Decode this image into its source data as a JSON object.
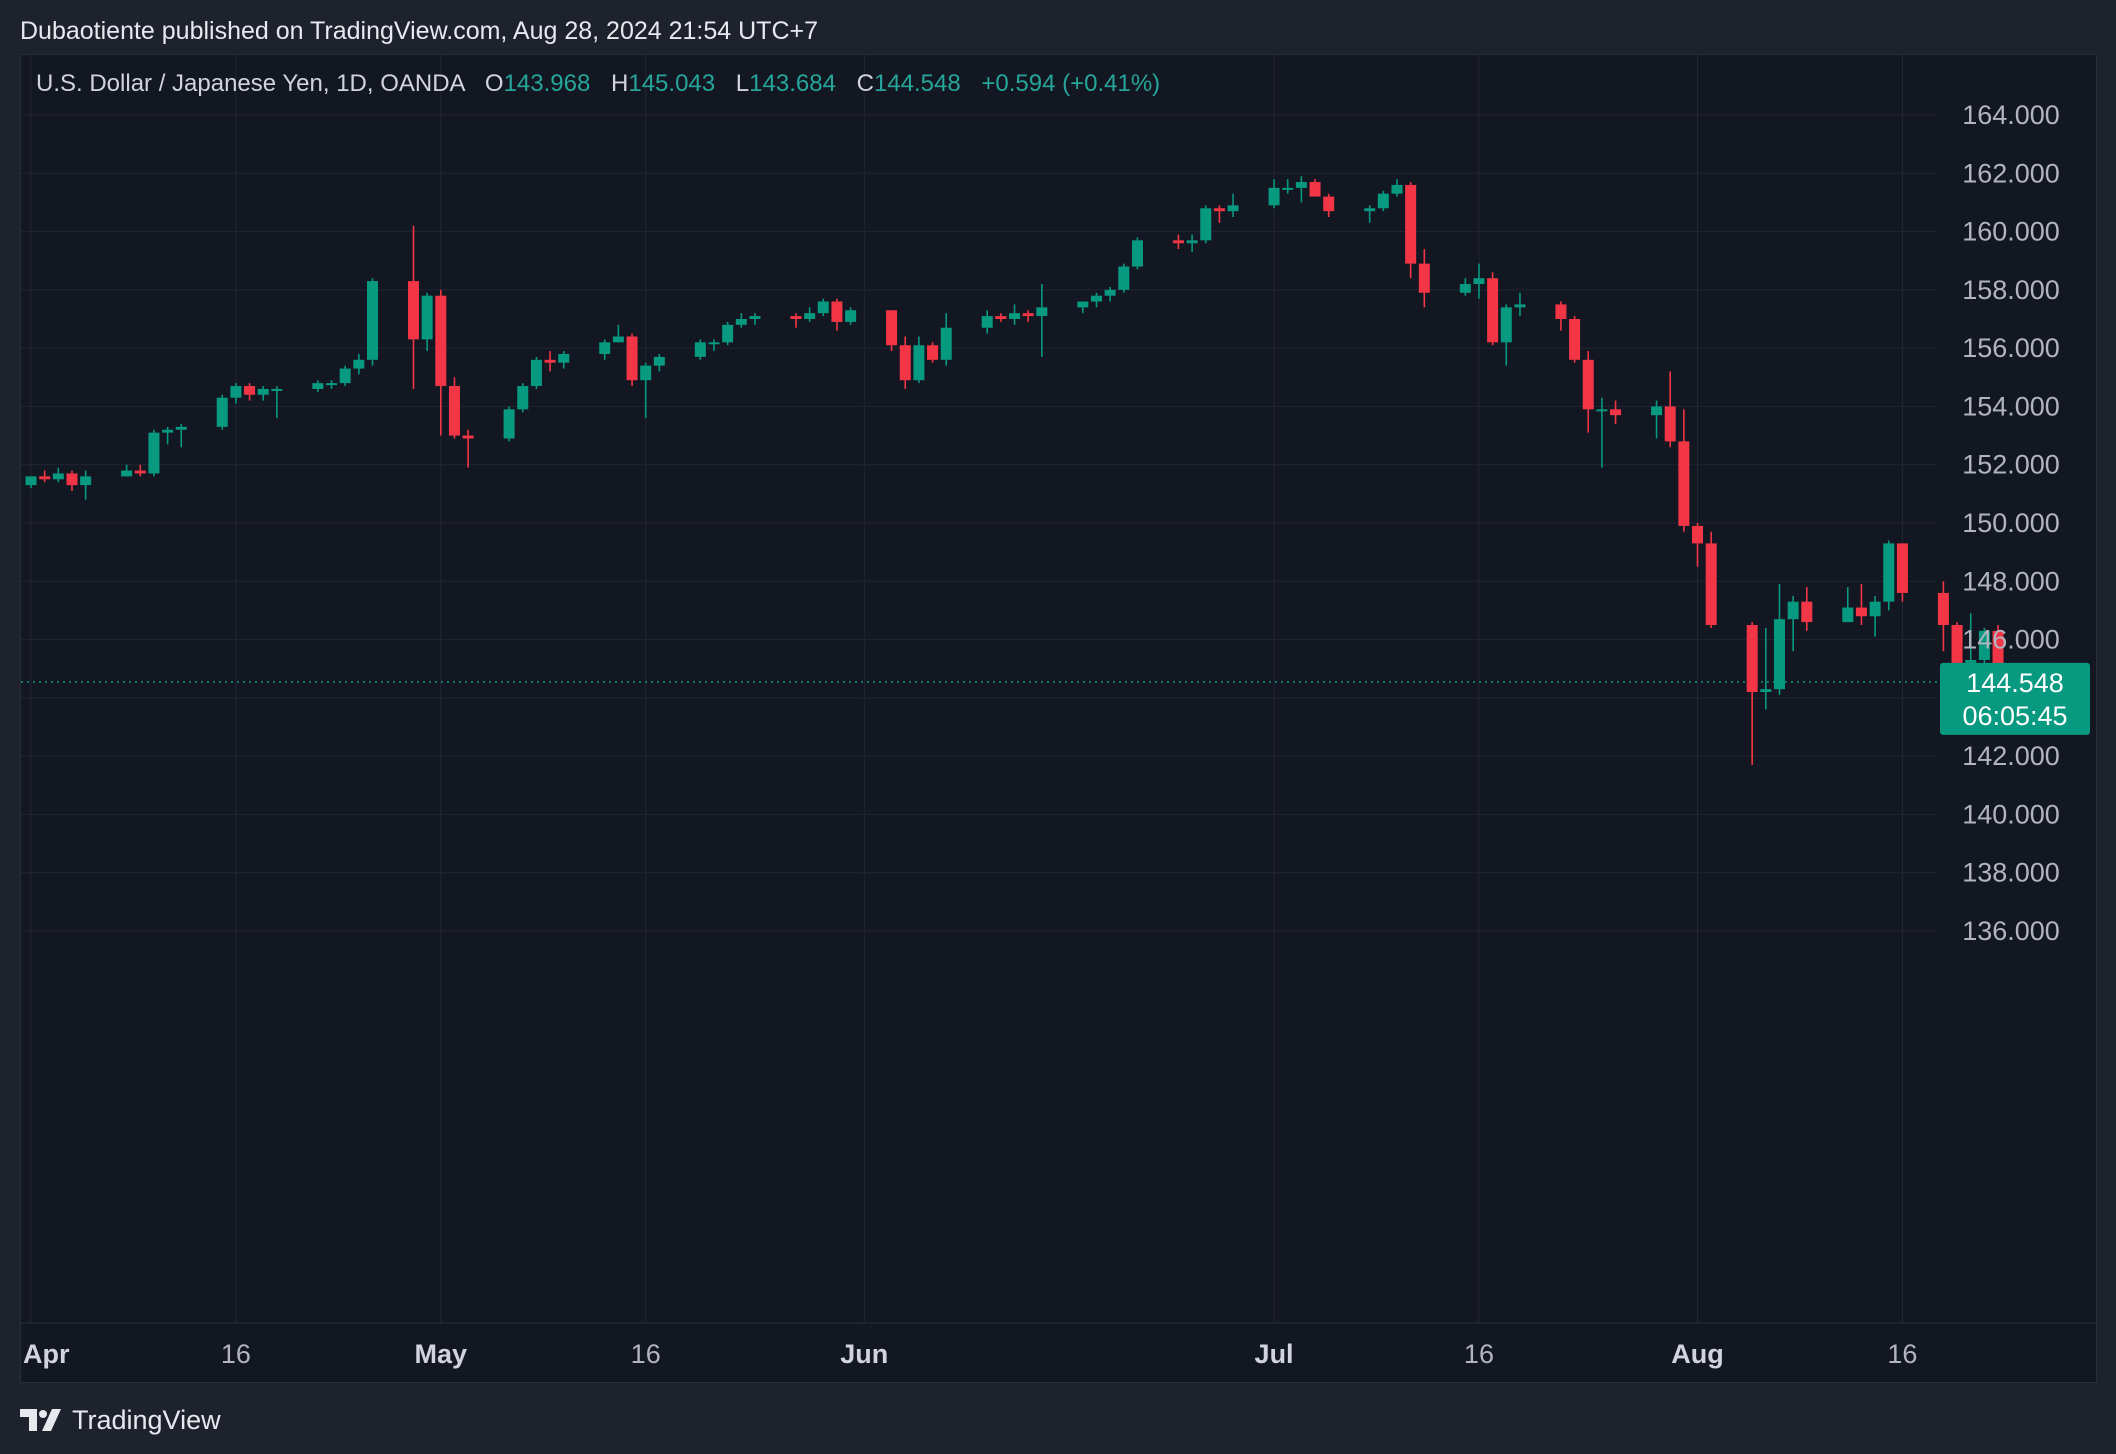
{
  "header": {
    "published_line": "Dubaotiente published on TradingView.com, Aug 28, 2024 21:54 UTC+7"
  },
  "legend": {
    "symbol": "U.S. Dollar / Japanese Yen, 1D, OANDA",
    "open_key": "O",
    "open_value": "143.968",
    "high_key": "H",
    "high_value": "145.043",
    "low_key": "L",
    "low_value": "143.684",
    "close_key": "C",
    "close_value": "144.548",
    "change": "+0.594 (+0.41%)"
  },
  "price_tag": {
    "price": "144.548",
    "countdown": "06:05:45"
  },
  "footer": {
    "brand": "TradingView"
  },
  "colors": {
    "up": "#089981",
    "down": "#f23645",
    "background": "#131722",
    "grid": "#232632",
    "price_tag": "#089981"
  },
  "chart_data": {
    "type": "candlestick",
    "title": "U.S. Dollar / Japanese Yen, 1D, OANDA",
    "xlabel": "",
    "ylabel": "",
    "y_axis_position": "right",
    "ylim": [
      134.5,
      165.5
    ],
    "y_ticks": [
      "136.000",
      "138.000",
      "140.000",
      "142.000",
      "144.000",
      "146.000",
      "148.000",
      "150.000",
      "152.000",
      "154.000",
      "156.000",
      "158.000",
      "160.000",
      "162.000",
      "164.000"
    ],
    "x_ticks": [
      {
        "label": "Apr",
        "date": "2024-04-01",
        "month": true
      },
      {
        "label": "16",
        "date": "2024-04-16",
        "month": false
      },
      {
        "label": "May",
        "date": "2024-05-01",
        "month": true
      },
      {
        "label": "16",
        "date": "2024-05-16",
        "month": false
      },
      {
        "label": "Jun",
        "date": "2024-06-01",
        "month": true
      },
      {
        "label": "Jul",
        "date": "2024-07-01",
        "month": true
      },
      {
        "label": "16",
        "date": "2024-07-16",
        "month": false
      },
      {
        "label": "Aug",
        "date": "2024-08-01",
        "month": true
      },
      {
        "label": "16",
        "date": "2024-08-16",
        "month": false
      }
    ],
    "x_range": [
      "2024-04-01",
      "2024-08-28"
    ],
    "last_price": 144.548,
    "grid": true,
    "candles": [
      {
        "date": "2024-04-01",
        "o": 151.3,
        "h": 151.6,
        "l": 151.2,
        "c": 151.6
      },
      {
        "date": "2024-04-02",
        "o": 151.6,
        "h": 151.8,
        "l": 151.4,
        "c": 151.5
      },
      {
        "date": "2024-04-03",
        "o": 151.5,
        "h": 151.9,
        "l": 151.4,
        "c": 151.7
      },
      {
        "date": "2024-04-04",
        "o": 151.7,
        "h": 151.8,
        "l": 151.1,
        "c": 151.3
      },
      {
        "date": "2024-04-05",
        "o": 151.3,
        "h": 151.8,
        "l": 150.8,
        "c": 151.6
      },
      {
        "date": "2024-04-08",
        "o": 151.6,
        "h": 152.0,
        "l": 151.6,
        "c": 151.8
      },
      {
        "date": "2024-04-09",
        "o": 151.8,
        "h": 152.0,
        "l": 151.6,
        "c": 151.7
      },
      {
        "date": "2024-04-10",
        "o": 151.7,
        "h": 153.2,
        "l": 151.6,
        "c": 153.1
      },
      {
        "date": "2024-04-11",
        "o": 153.1,
        "h": 153.3,
        "l": 152.7,
        "c": 153.2
      },
      {
        "date": "2024-04-12",
        "o": 153.2,
        "h": 153.4,
        "l": 152.6,
        "c": 153.3
      },
      {
        "date": "2024-04-15",
        "o": 153.3,
        "h": 154.4,
        "l": 153.2,
        "c": 154.3
      },
      {
        "date": "2024-04-16",
        "o": 154.3,
        "h": 154.8,
        "l": 154.1,
        "c": 154.7
      },
      {
        "date": "2024-04-17",
        "o": 154.7,
        "h": 154.8,
        "l": 154.2,
        "c": 154.4
      },
      {
        "date": "2024-04-18",
        "o": 154.4,
        "h": 154.7,
        "l": 154.2,
        "c": 154.6
      },
      {
        "date": "2024-04-19",
        "o": 154.6,
        "h": 154.7,
        "l": 153.6,
        "c": 154.6
      },
      {
        "date": "2024-04-22",
        "o": 154.6,
        "h": 154.9,
        "l": 154.5,
        "c": 154.8
      },
      {
        "date": "2024-04-23",
        "o": 154.8,
        "h": 154.9,
        "l": 154.6,
        "c": 154.8
      },
      {
        "date": "2024-04-24",
        "o": 154.8,
        "h": 155.4,
        "l": 154.7,
        "c": 155.3
      },
      {
        "date": "2024-04-25",
        "o": 155.3,
        "h": 155.8,
        "l": 155.1,
        "c": 155.6
      },
      {
        "date": "2024-04-26",
        "o": 155.6,
        "h": 158.4,
        "l": 155.4,
        "c": 158.3
      },
      {
        "date": "2024-04-29",
        "o": 158.3,
        "h": 160.2,
        "l": 154.6,
        "c": 156.3
      },
      {
        "date": "2024-04-30",
        "o": 156.3,
        "h": 157.9,
        "l": 155.9,
        "c": 157.8
      },
      {
        "date": "2024-05-01",
        "o": 157.8,
        "h": 158.0,
        "l": 153.0,
        "c": 154.7
      },
      {
        "date": "2024-05-02",
        "o": 154.7,
        "h": 155.0,
        "l": 152.9,
        "c": 153.0
      },
      {
        "date": "2024-05-03",
        "o": 153.0,
        "h": 153.2,
        "l": 151.9,
        "c": 152.9
      },
      {
        "date": "2024-05-06",
        "o": 152.9,
        "h": 154.0,
        "l": 152.8,
        "c": 153.9
      },
      {
        "date": "2024-05-07",
        "o": 153.9,
        "h": 154.8,
        "l": 153.8,
        "c": 154.7
      },
      {
        "date": "2024-05-08",
        "o": 154.7,
        "h": 155.7,
        "l": 154.6,
        "c": 155.6
      },
      {
        "date": "2024-05-09",
        "o": 155.6,
        "h": 155.9,
        "l": 155.2,
        "c": 155.5
      },
      {
        "date": "2024-05-10",
        "o": 155.5,
        "h": 155.9,
        "l": 155.3,
        "c": 155.8
      },
      {
        "date": "2024-05-13",
        "o": 155.8,
        "h": 156.3,
        "l": 155.6,
        "c": 156.2
      },
      {
        "date": "2024-05-14",
        "o": 156.2,
        "h": 156.8,
        "l": 156.2,
        "c": 156.4
      },
      {
        "date": "2024-05-15",
        "o": 156.4,
        "h": 156.5,
        "l": 154.7,
        "c": 154.9
      },
      {
        "date": "2024-05-16",
        "o": 154.9,
        "h": 155.5,
        "l": 153.6,
        "c": 155.4
      },
      {
        "date": "2024-05-17",
        "o": 155.4,
        "h": 155.8,
        "l": 155.2,
        "c": 155.7
      },
      {
        "date": "2024-05-20",
        "o": 155.7,
        "h": 156.3,
        "l": 155.6,
        "c": 156.2
      },
      {
        "date": "2024-05-21",
        "o": 156.2,
        "h": 156.3,
        "l": 155.9,
        "c": 156.2
      },
      {
        "date": "2024-05-22",
        "o": 156.2,
        "h": 156.9,
        "l": 156.1,
        "c": 156.8
      },
      {
        "date": "2024-05-23",
        "o": 156.8,
        "h": 157.2,
        "l": 156.7,
        "c": 157.0
      },
      {
        "date": "2024-05-24",
        "o": 157.0,
        "h": 157.2,
        "l": 156.8,
        "c": 157.1
      },
      {
        "date": "2024-05-27",
        "o": 157.1,
        "h": 157.2,
        "l": 156.7,
        "c": 157.0
      },
      {
        "date": "2024-05-28",
        "o": 157.0,
        "h": 157.4,
        "l": 156.9,
        "c": 157.2
      },
      {
        "date": "2024-05-29",
        "o": 157.2,
        "h": 157.7,
        "l": 157.1,
        "c": 157.6
      },
      {
        "date": "2024-05-30",
        "o": 157.6,
        "h": 157.7,
        "l": 156.6,
        "c": 156.9
      },
      {
        "date": "2024-05-31",
        "o": 156.9,
        "h": 157.4,
        "l": 156.8,
        "c": 157.3
      },
      {
        "date": "2024-06-03",
        "o": 157.3,
        "h": 157.3,
        "l": 155.9,
        "c": 156.1
      },
      {
        "date": "2024-06-04",
        "o": 156.1,
        "h": 156.4,
        "l": 154.6,
        "c": 154.9
      },
      {
        "date": "2024-06-05",
        "o": 154.9,
        "h": 156.4,
        "l": 154.8,
        "c": 156.1
      },
      {
        "date": "2024-06-06",
        "o": 156.1,
        "h": 156.2,
        "l": 155.5,
        "c": 155.6
      },
      {
        "date": "2024-06-07",
        "o": 155.6,
        "h": 157.2,
        "l": 155.4,
        "c": 156.7
      },
      {
        "date": "2024-06-10",
        "o": 156.7,
        "h": 157.3,
        "l": 156.5,
        "c": 157.1
      },
      {
        "date": "2024-06-11",
        "o": 157.1,
        "h": 157.2,
        "l": 156.9,
        "c": 157.0
      },
      {
        "date": "2024-06-12",
        "o": 157.0,
        "h": 157.5,
        "l": 156.8,
        "c": 157.2
      },
      {
        "date": "2024-06-13",
        "o": 157.2,
        "h": 157.3,
        "l": 156.9,
        "c": 157.1
      },
      {
        "date": "2024-06-14",
        "o": 157.1,
        "h": 158.2,
        "l": 155.7,
        "c": 157.4
      },
      {
        "date": "2024-06-17",
        "o": 157.4,
        "h": 157.6,
        "l": 157.2,
        "c": 157.6
      },
      {
        "date": "2024-06-18",
        "o": 157.6,
        "h": 157.9,
        "l": 157.4,
        "c": 157.8
      },
      {
        "date": "2024-06-19",
        "o": 157.8,
        "h": 158.1,
        "l": 157.6,
        "c": 158.0
      },
      {
        "date": "2024-06-20",
        "o": 158.0,
        "h": 158.9,
        "l": 157.9,
        "c": 158.8
      },
      {
        "date": "2024-06-21",
        "o": 158.8,
        "h": 159.8,
        "l": 158.7,
        "c": 159.7
      },
      {
        "date": "2024-06-24",
        "o": 159.7,
        "h": 159.9,
        "l": 159.4,
        "c": 159.6
      },
      {
        "date": "2024-06-25",
        "o": 159.6,
        "h": 159.9,
        "l": 159.3,
        "c": 159.7
      },
      {
        "date": "2024-06-26",
        "o": 159.7,
        "h": 160.9,
        "l": 159.6,
        "c": 160.8
      },
      {
        "date": "2024-06-27",
        "o": 160.8,
        "h": 160.9,
        "l": 160.3,
        "c": 160.7
      },
      {
        "date": "2024-06-28",
        "o": 160.7,
        "h": 161.3,
        "l": 160.5,
        "c": 160.9
      },
      {
        "date": "2024-07-01",
        "o": 160.9,
        "h": 161.8,
        "l": 160.8,
        "c": 161.5
      },
      {
        "date": "2024-07-02",
        "o": 161.5,
        "h": 161.8,
        "l": 161.3,
        "c": 161.5
      },
      {
        "date": "2024-07-03",
        "o": 161.5,
        "h": 161.9,
        "l": 161.0,
        "c": 161.7
      },
      {
        "date": "2024-07-04",
        "o": 161.7,
        "h": 161.8,
        "l": 161.3,
        "c": 161.2
      },
      {
        "date": "2024-07-05",
        "o": 161.2,
        "h": 161.3,
        "l": 160.5,
        "c": 160.7
      },
      {
        "date": "2024-07-08",
        "o": 160.7,
        "h": 160.9,
        "l": 160.3,
        "c": 160.8
      },
      {
        "date": "2024-07-09",
        "o": 160.8,
        "h": 161.4,
        "l": 160.7,
        "c": 161.3
      },
      {
        "date": "2024-07-10",
        "o": 161.3,
        "h": 161.8,
        "l": 161.2,
        "c": 161.6
      },
      {
        "date": "2024-07-11",
        "o": 161.6,
        "h": 161.7,
        "l": 158.4,
        "c": 158.9
      },
      {
        "date": "2024-07-12",
        "o": 158.9,
        "h": 159.4,
        "l": 157.4,
        "c": 157.9
      },
      {
        "date": "2024-07-15",
        "o": 157.9,
        "h": 158.4,
        "l": 157.8,
        "c": 158.2
      },
      {
        "date": "2024-07-16",
        "o": 158.2,
        "h": 158.9,
        "l": 157.7,
        "c": 158.4
      },
      {
        "date": "2024-07-17",
        "o": 158.4,
        "h": 158.6,
        "l": 156.1,
        "c": 156.2
      },
      {
        "date": "2024-07-18",
        "o": 156.2,
        "h": 157.5,
        "l": 155.4,
        "c": 157.4
      },
      {
        "date": "2024-07-19",
        "o": 157.4,
        "h": 157.9,
        "l": 157.1,
        "c": 157.5
      },
      {
        "date": "2024-07-22",
        "o": 157.5,
        "h": 157.6,
        "l": 156.6,
        "c": 157.0
      },
      {
        "date": "2024-07-23",
        "o": 157.0,
        "h": 157.1,
        "l": 155.5,
        "c": 155.6
      },
      {
        "date": "2024-07-24",
        "o": 155.6,
        "h": 155.9,
        "l": 153.1,
        "c": 153.9
      },
      {
        "date": "2024-07-25",
        "o": 153.9,
        "h": 154.3,
        "l": 151.9,
        "c": 153.9
      },
      {
        "date": "2024-07-26",
        "o": 153.9,
        "h": 154.2,
        "l": 153.4,
        "c": 153.7
      },
      {
        "date": "2024-07-29",
        "o": 153.7,
        "h": 154.2,
        "l": 152.9,
        "c": 154.0
      },
      {
        "date": "2024-07-30",
        "o": 154.0,
        "h": 155.2,
        "l": 152.6,
        "c": 152.8
      },
      {
        "date": "2024-07-31",
        "o": 152.8,
        "h": 153.9,
        "l": 149.7,
        "c": 149.9
      },
      {
        "date": "2024-08-01",
        "o": 149.9,
        "h": 150.0,
        "l": 148.5,
        "c": 149.3
      },
      {
        "date": "2024-08-02",
        "o": 149.3,
        "h": 149.7,
        "l": 146.4,
        "c": 146.5
      },
      {
        "date": "2024-08-05",
        "o": 146.5,
        "h": 146.6,
        "l": 141.7,
        "c": 144.2
      },
      {
        "date": "2024-08-06",
        "o": 144.2,
        "h": 146.4,
        "l": 143.6,
        "c": 144.3
      },
      {
        "date": "2024-08-07",
        "o": 144.3,
        "h": 147.9,
        "l": 144.1,
        "c": 146.7
      },
      {
        "date": "2024-08-08",
        "o": 146.7,
        "h": 147.5,
        "l": 145.6,
        "c": 147.3
      },
      {
        "date": "2024-08-09",
        "o": 147.3,
        "h": 147.8,
        "l": 146.3,
        "c": 146.6
      },
      {
        "date": "2024-08-12",
        "o": 146.6,
        "h": 147.8,
        "l": 146.6,
        "c": 147.1
      },
      {
        "date": "2024-08-13",
        "o": 147.1,
        "h": 147.9,
        "l": 146.5,
        "c": 146.8
      },
      {
        "date": "2024-08-14",
        "o": 146.8,
        "h": 147.5,
        "l": 146.1,
        "c": 147.3
      },
      {
        "date": "2024-08-15",
        "o": 147.3,
        "h": 149.4,
        "l": 147.0,
        "c": 149.3
      },
      {
        "date": "2024-08-16",
        "o": 149.3,
        "h": 149.3,
        "l": 147.3,
        "c": 147.6
      },
      {
        "date": "2024-08-19",
        "o": 147.6,
        "h": 148.0,
        "l": 145.6,
        "c": 146.5
      },
      {
        "date": "2024-08-20",
        "o": 146.5,
        "h": 146.6,
        "l": 145.1,
        "c": 145.2
      },
      {
        "date": "2024-08-21",
        "o": 145.2,
        "h": 146.9,
        "l": 144.5,
        "c": 145.3
      },
      {
        "date": "2024-08-22",
        "o": 145.3,
        "h": 146.4,
        "l": 145.1,
        "c": 146.3
      },
      {
        "date": "2024-08-23",
        "o": 146.3,
        "h": 146.5,
        "l": 144.0,
        "c": 144.4
      },
      {
        "date": "2024-08-26",
        "o": 144.4,
        "h": 145.0,
        "l": 143.6,
        "c": 144.6
      },
      {
        "date": "2024-08-27",
        "o": 144.6,
        "h": 145.2,
        "l": 143.9,
        "c": 144.0
      },
      {
        "date": "2024-08-28",
        "o": 143.968,
        "h": 145.043,
        "l": 143.684,
        "c": 144.548
      }
    ]
  }
}
